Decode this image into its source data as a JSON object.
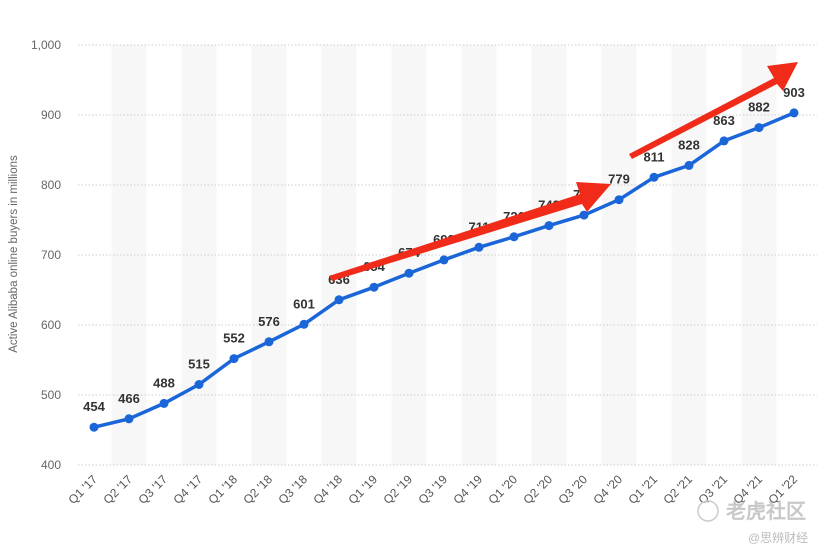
{
  "chart_data": {
    "type": "line",
    "ylabel": "Active Alibaba online buyers in millions",
    "ylim": [
      400,
      1000
    ],
    "yticks": [
      400,
      500,
      600,
      700,
      800,
      900,
      1000
    ],
    "ytick_labels": [
      "400",
      "500",
      "600",
      "700",
      "800",
      "900",
      "1,000"
    ],
    "categories": [
      "Q1 '17",
      "Q2 '17",
      "Q3 '17",
      "Q4 '17",
      "Q1 '18",
      "Q2 '18",
      "Q3 '18",
      "Q4 '18",
      "Q1 '19",
      "Q2 '19",
      "Q3 '19",
      "Q4 '19",
      "Q1 '20",
      "Q2 '20",
      "Q3 '20",
      "Q4 '20",
      "Q1 '21",
      "Q2 '21",
      "Q3 '21",
      "Q4 '21",
      "Q1 '22"
    ],
    "series": [
      {
        "values": [
          454,
          466,
          488,
          515,
          552,
          576,
          601,
          636,
          654,
          674,
          693,
          711,
          726,
          742,
          757,
          779,
          811,
          828,
          863,
          882,
          903
        ]
      }
    ],
    "grid": true,
    "annotations": [
      "red-arrow-q4-18-to-q4-20",
      "red-arrow-q4-20-to-q1-22"
    ]
  },
  "colors": {
    "line": "#1a66d8",
    "arrow": "#f02b1a",
    "band": "#f7f7f7",
    "grid": "#cccccc"
  },
  "watermark": {
    "main": "老虎社区",
    "sub": "@思辨财经"
  }
}
